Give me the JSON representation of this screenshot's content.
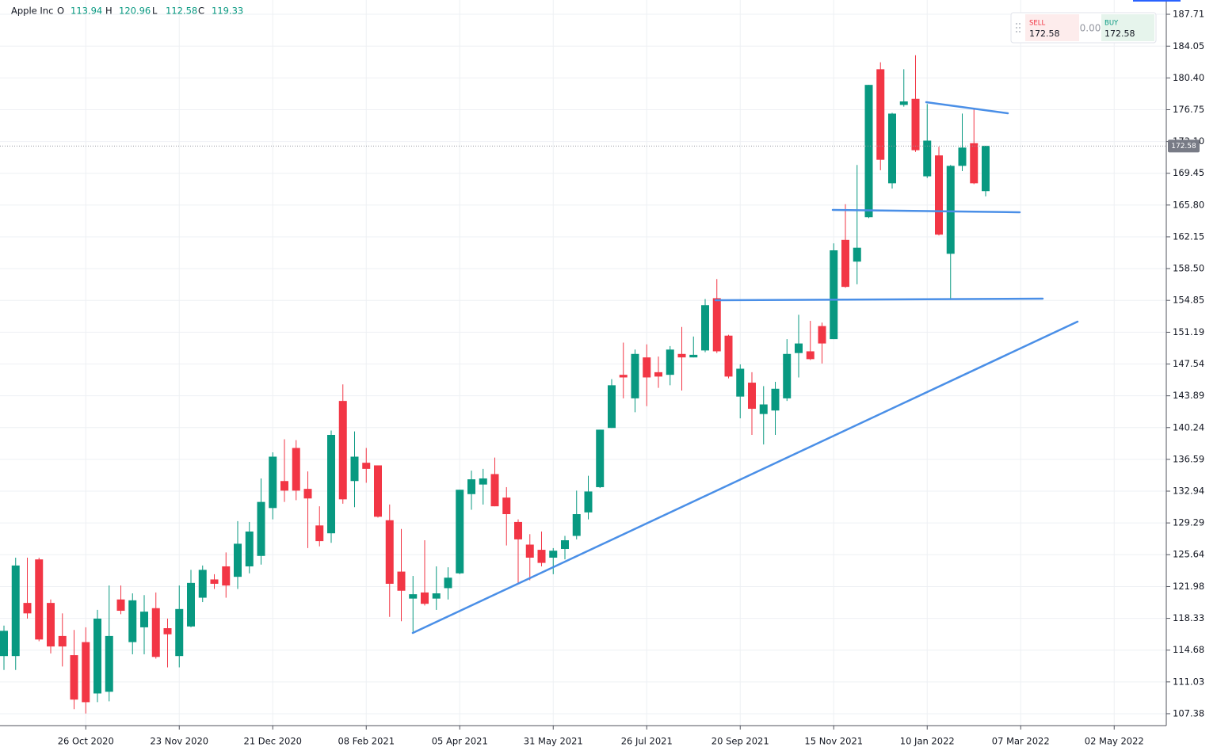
{
  "chart_data": {
    "type": "candlestick",
    "title": "Apple Inc",
    "legend": {
      "labels": [
        "O",
        "H",
        "L",
        "C"
      ],
      "values": [
        113.94,
        120.96,
        112.58,
        119.33
      ]
    },
    "trade_panel": {
      "sell_label": "SELL",
      "sell": 172.58,
      "spread": "0.00",
      "buy_label": "BUY",
      "buy": 172.58
    },
    "last_price": 172.58,
    "up_color": "#089981",
    "down_color": "#f23645",
    "grid": true,
    "categories": [
      null,
      null,
      null,
      null,
      null,
      null,
      null,
      "26 Oct 2020",
      null,
      null,
      null,
      null,
      null,
      null,
      null,
      "23 Nov 2020",
      null,
      null,
      null,
      null,
      null,
      null,
      null,
      "21 Dec 2020",
      null,
      null,
      null,
      null,
      null,
      null,
      null,
      "08 Feb 2021",
      null,
      null,
      null,
      null,
      null,
      null,
      null,
      "05 Apr 2021",
      null,
      null,
      null,
      null,
      null,
      null,
      null,
      "31 May 2021",
      null,
      null,
      null,
      null,
      null,
      null,
      null,
      "26 Jul 2021",
      null,
      null,
      null,
      null,
      null,
      null,
      null,
      "20 Sep 2021",
      null,
      null,
      null,
      null,
      null,
      null,
      null,
      "15 Nov 2021",
      null,
      null,
      null,
      null,
      null,
      null,
      null,
      "10 Jan 2022",
      null,
      null,
      null,
      null,
      null,
      null,
      null,
      "07 Mar 2022",
      null,
      null,
      null,
      null,
      null,
      null,
      null,
      "02 May 2022",
      null,
      null,
      null
    ],
    "open": [
      114.0,
      114.0,
      120.1,
      125.1,
      120.1,
      116.3,
      114.1,
      115.6,
      109.7,
      109.9,
      120.5,
      115.6,
      117.3,
      119.5,
      117.2,
      114.0,
      117.4,
      120.7,
      122.8,
      124.3,
      123.1,
      124.3,
      125.5,
      131.0,
      134.1,
      137.9,
      133.2,
      129.0,
      128.1,
      143.3,
      134.1,
      136.2,
      135.9,
      129.6,
      123.7,
      120.6,
      121.3,
      120.6,
      121.8,
      123.5,
      132.6,
      133.7,
      134.9,
      132.2,
      129.4,
      126.8,
      126.2,
      125.3,
      126.3,
      127.8,
      130.5,
      133.4,
      140.2,
      146.3,
      143.6,
      148.3,
      146.6,
      146.3,
      148.7,
      148.3,
      149.1,
      155.1,
      150.8,
      143.8,
      145.4,
      141.8,
      142.2,
      143.6,
      148.8,
      149.0,
      151.9,
      150.4,
      161.8,
      159.3,
      164.4,
      181.4,
      168.3,
      177.3,
      178.0,
      169.1,
      171.5,
      160.2,
      170.3,
      172.9,
      167.4,
      null,
      null,
      null,
      null,
      null,
      null,
      null,
      null,
      null,
      null,
      null,
      null,
      null,
      null
    ],
    "high": [
      117.5,
      125.3,
      125.3,
      125.3,
      120.5,
      118.9,
      117.0,
      117.3,
      119.3,
      122.1,
      122.1,
      121.2,
      121.0,
      121.3,
      118.3,
      122.1,
      123.9,
      124.4,
      123.4,
      125.9,
      129.5,
      129.4,
      134.4,
      137.4,
      138.9,
      138.8,
      135.2,
      131.2,
      139.9,
      145.2,
      139.8,
      137.9,
      135.9,
      131.4,
      128.6,
      123.2,
      127.3,
      124.3,
      124.2,
      133.1,
      135.3,
      135.5,
      136.8,
      133.4,
      129.7,
      128.0,
      128.3,
      126.4,
      127.8,
      133.0,
      134.7,
      140.0,
      145.8,
      150.0,
      149.2,
      149.8,
      148.4,
      149.6,
      151.8,
      150.7,
      155.0,
      157.3,
      150.9,
      147.5,
      146.6,
      145.0,
      145.5,
      150.4,
      153.2,
      152.5,
      152.3,
      161.4,
      165.9,
      170.4,
      179.6,
      182.2,
      176.4,
      181.4,
      183.0,
      177.4,
      172.5,
      170.4,
      176.3,
      176.8,
      172.6,
      null,
      null,
      null,
      null,
      null,
      null,
      null,
      null,
      null,
      null,
      null,
      null,
      null,
      null
    ],
    "low": [
      112.4,
      112.4,
      118.3,
      115.7,
      114.3,
      112.8,
      107.9,
      107.4,
      108.7,
      108.8,
      118.8,
      114.2,
      114.2,
      113.7,
      112.7,
      112.7,
      117.3,
      120.2,
      121.7,
      120.7,
      121.7,
      123.5,
      124.5,
      129.7,
      131.7,
      131.9,
      126.4,
      126.6,
      127.0,
      131.5,
      131.1,
      133.9,
      129.9,
      118.5,
      118.0,
      116.8,
      119.8,
      119.3,
      120.5,
      123.4,
      130.8,
      131.4,
      131.2,
      126.7,
      122.3,
      122.7,
      124.3,
      123.4,
      125.1,
      127.4,
      129.7,
      133.3,
      140.2,
      143.6,
      142.0,
      142.7,
      144.8,
      145.1,
      144.5,
      148.3,
      148.9,
      148.8,
      145.9,
      141.3,
      139.4,
      138.3,
      139.4,
      143.3,
      146.0,
      148.0,
      147.6,
      150.4,
      156.3,
      156.7,
      164.3,
      169.8,
      167.7,
      177.1,
      171.9,
      168.9,
      162.3,
      154.9,
      169.7,
      168.2,
      166.8,
      null,
      null,
      null,
      null,
      null,
      null,
      null,
      null,
      null,
      null,
      null,
      null,
      null,
      null
    ],
    "close": [
      116.9,
      124.4,
      118.9,
      115.9,
      115.1,
      115.1,
      109.0,
      108.7,
      118.3,
      116.3,
      119.2,
      120.4,
      119.1,
      113.9,
      116.5,
      119.4,
      122.4,
      123.9,
      122.3,
      122.1,
      126.9,
      128.3,
      131.7,
      136.9,
      133.0,
      133.0,
      132.1,
      127.2,
      139.4,
      132.0,
      136.9,
      135.5,
      130.0,
      122.3,
      121.5,
      121.1,
      120.0,
      121.2,
      123.0,
      133.1,
      134.3,
      134.4,
      131.2,
      130.3,
      127.4,
      125.3,
      124.7,
      126.1,
      127.3,
      130.3,
      132.9,
      140.0,
      145.1,
      146.0,
      148.7,
      146.0,
      146.1,
      149.2,
      148.3,
      148.6,
      154.3,
      149.0,
      146.1,
      147.0,
      142.4,
      142.9,
      144.7,
      148.7,
      149.9,
      148.1,
      149.9,
      160.6,
      156.4,
      160.9,
      179.6,
      171.0,
      176.3,
      177.7,
      172.1,
      173.2,
      162.4,
      170.3,
      172.4,
      168.3,
      172.6,
      null,
      null,
      null,
      null,
      null,
      null,
      null,
      null,
      null,
      null,
      null,
      null,
      null,
      null
    ],
    "ylim": [
      106.01,
      189.35
    ],
    "yticks": [
      187.71,
      184.05,
      {
        "value": 180.4,
        "label": "180.40"
      },
      176.75,
      {
        "value": 173.1,
        "label": "173.10"
      },
      169.45,
      {
        "value": 165.8,
        "label": "165.80"
      },
      162.15,
      {
        "value": 158.5,
        "label": "158.50"
      },
      154.85,
      151.19,
      147.54,
      143.89,
      140.24,
      136.59,
      132.94,
      129.29,
      125.64,
      121.98,
      118.33,
      114.68,
      111.03,
      107.38
    ]
  }
}
